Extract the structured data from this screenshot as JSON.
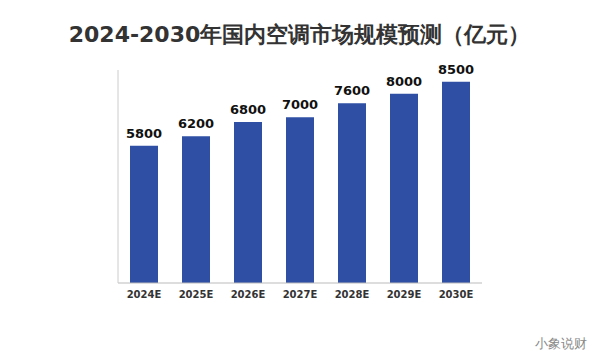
{
  "chart_data": {
    "type": "bar",
    "title": "2024-2030年国内空调市场规模预测（亿元）",
    "categories": [
      "2024E",
      "2025E",
      "2026E",
      "2027E",
      "2028E",
      "2029E",
      "2030E"
    ],
    "values": [
      5800,
      6200,
      6800,
      7000,
      7600,
      8000,
      8500
    ],
    "color": "#2E4FA3",
    "ylim": [
      0,
      9000
    ],
    "grid": false,
    "data_labels": true,
    "tick_labels": "x",
    "annotations": [
      "小象说财"
    ]
  }
}
